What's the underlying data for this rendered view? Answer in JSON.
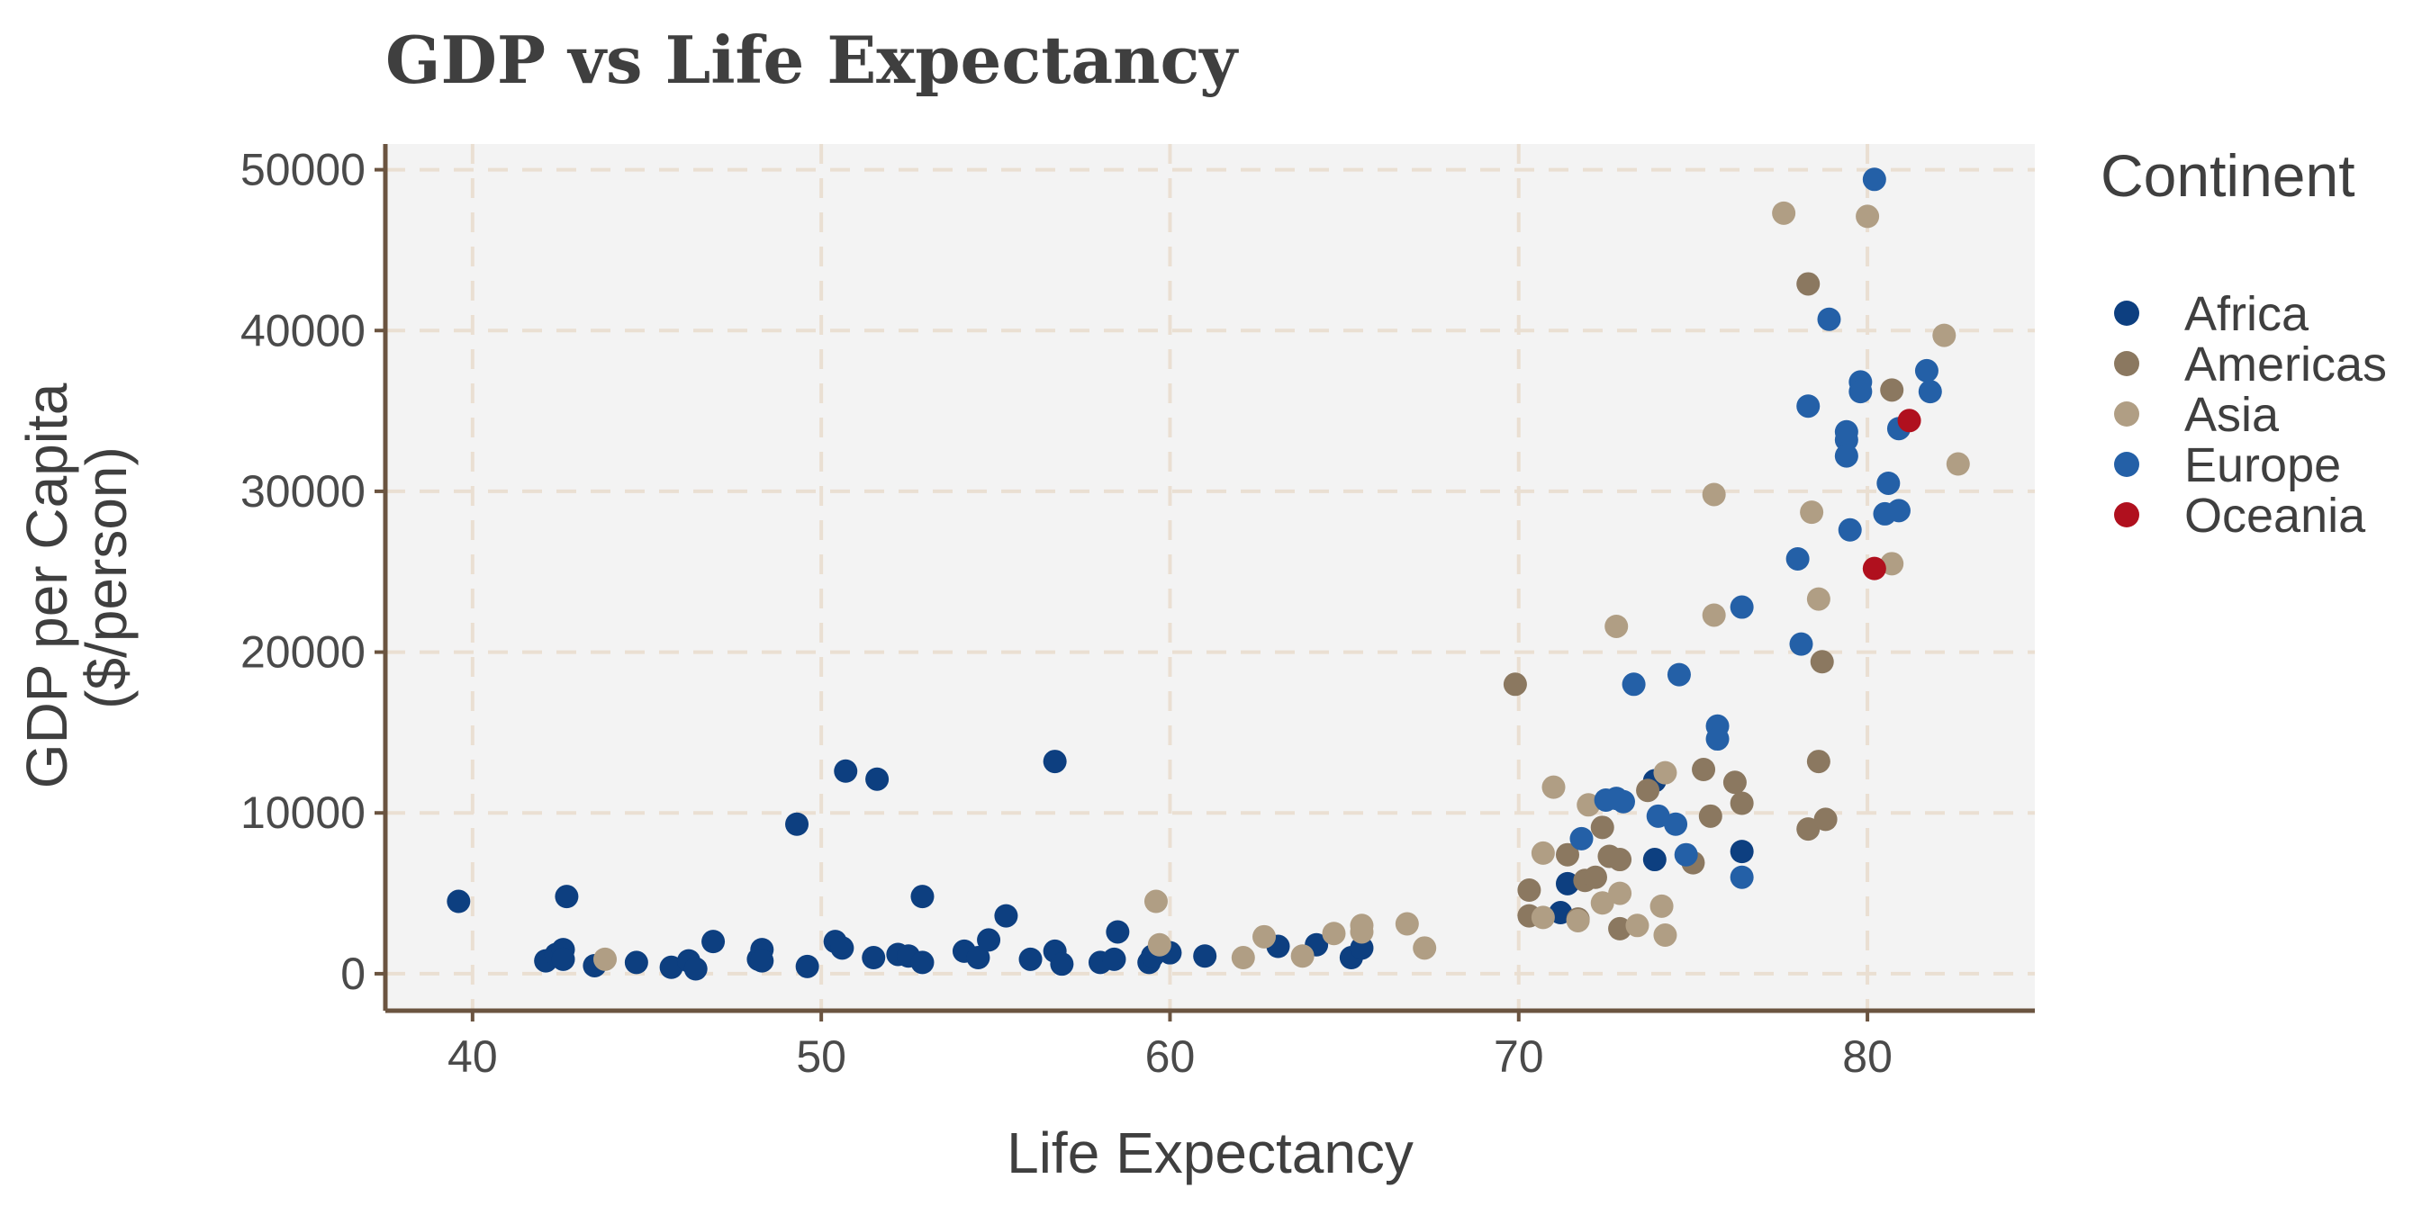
{
  "chart_data": {
    "type": "scatter",
    "title": "GDP vs Life Expectancy",
    "xlabel": "Life Expectancy",
    "ylabel": [
      "GDP per Capita",
      "($/person)"
    ],
    "xlim": [
      37.5,
      84.8
    ],
    "ylim": [
      -2300,
      51600
    ],
    "xticks": [
      40,
      50,
      60,
      70,
      80
    ],
    "yticks": [
      0,
      10000,
      20000,
      30000,
      40000,
      50000
    ],
    "grid": true,
    "legend": {
      "title": "Continent",
      "position": "right"
    },
    "colors": {
      "panel": "#f3f3f3",
      "grid": "#eadfd2",
      "axis": "#6b5440",
      "Africa": "#0d3f80",
      "Americas": "#8b7860",
      "Asia": "#b09e84",
      "Europe": "#2460a7",
      "Oceania": "#b0101e"
    },
    "series": [
      {
        "name": "Africa",
        "points": [
          [
            39.6,
            4500
          ],
          [
            42.1,
            800
          ],
          [
            42.4,
            1200
          ],
          [
            42.6,
            1500
          ],
          [
            42.6,
            900
          ],
          [
            42.7,
            4800
          ],
          [
            43.5,
            500
          ],
          [
            44.7,
            700
          ],
          [
            45.7,
            400
          ],
          [
            46.2,
            800
          ],
          [
            46.4,
            300
          ],
          [
            46.9,
            2000
          ],
          [
            48.2,
            900
          ],
          [
            48.3,
            1500
          ],
          [
            48.3,
            800
          ],
          [
            49.3,
            9300
          ],
          [
            49.6,
            450
          ],
          [
            50.4,
            2000
          ],
          [
            50.6,
            1600
          ],
          [
            50.7,
            12600
          ],
          [
            51.5,
            1000
          ],
          [
            51.6,
            12100
          ],
          [
            52.2,
            1200
          ],
          [
            52.5,
            1100
          ],
          [
            52.9,
            4800
          ],
          [
            52.9,
            700
          ],
          [
            54.1,
            1400
          ],
          [
            54.5,
            1000
          ],
          [
            54.8,
            2100
          ],
          [
            55.3,
            3600
          ],
          [
            56.0,
            900
          ],
          [
            56.7,
            1400
          ],
          [
            56.7,
            13200
          ],
          [
            56.9,
            600
          ],
          [
            58.0,
            700
          ],
          [
            58.4,
            900
          ],
          [
            58.5,
            2600
          ],
          [
            59.4,
            700
          ],
          [
            59.5,
            1100
          ],
          [
            60.0,
            1300
          ],
          [
            61.0,
            1100
          ],
          [
            63.1,
            1700
          ],
          [
            64.2,
            1800
          ],
          [
            65.2,
            1000
          ],
          [
            65.5,
            1600
          ],
          [
            71.4,
            5600
          ],
          [
            71.2,
            3800
          ],
          [
            73.9,
            7100
          ],
          [
            76.4,
            7600
          ],
          [
            73.9,
            12000
          ]
        ]
      },
      {
        "name": "Americas",
        "points": [
          [
            69.9,
            18000
          ],
          [
            70.3,
            3600
          ],
          [
            70.3,
            5200
          ],
          [
            71.4,
            7400
          ],
          [
            71.9,
            5800
          ],
          [
            72.2,
            6000
          ],
          [
            72.4,
            9100
          ],
          [
            72.6,
            7300
          ],
          [
            72.9,
            2800
          ],
          [
            72.9,
            7100
          ],
          [
            73.7,
            11400
          ],
          [
            75.0,
            6900
          ],
          [
            75.3,
            12700
          ],
          [
            75.5,
            9800
          ],
          [
            76.2,
            11900
          ],
          [
            76.4,
            10600
          ],
          [
            78.3,
            42900
          ],
          [
            78.3,
            9000
          ],
          [
            78.7,
            19400
          ],
          [
            78.6,
            13200
          ],
          [
            78.8,
            9600
          ],
          [
            80.7,
            36300
          ],
          [
            71.7,
            3400
          ]
        ]
      },
      {
        "name": "Asia",
        "points": [
          [
            43.8,
            900
          ],
          [
            59.6,
            4500
          ],
          [
            59.7,
            1800
          ],
          [
            62.1,
            1000
          ],
          [
            62.7,
            2300
          ],
          [
            63.8,
            1100
          ],
          [
            64.7,
            2500
          ],
          [
            65.5,
            2600
          ],
          [
            65.5,
            3000
          ],
          [
            66.8,
            3100
          ],
          [
            67.3,
            1600
          ],
          [
            70.7,
            7500
          ],
          [
            70.7,
            3500
          ],
          [
            71.0,
            11600
          ],
          [
            71.7,
            3300
          ],
          [
            72.0,
            10500
          ],
          [
            72.4,
            4400
          ],
          [
            72.8,
            21600
          ],
          [
            72.9,
            5000
          ],
          [
            73.4,
            3000
          ],
          [
            74.1,
            4200
          ],
          [
            74.2,
            2400
          ],
          [
            74.2,
            12500
          ],
          [
            75.6,
            22300
          ],
          [
            75.6,
            29800
          ],
          [
            77.6,
            47300
          ],
          [
            78.4,
            28700
          ],
          [
            78.6,
            23300
          ],
          [
            80.0,
            47100
          ],
          [
            80.7,
            25500
          ],
          [
            82.2,
            39700
          ],
          [
            82.6,
            31700
          ]
        ]
      },
      {
        "name": "Europe",
        "points": [
          [
            71.8,
            8400
          ],
          [
            72.5,
            10800
          ],
          [
            72.8,
            10900
          ],
          [
            73.0,
            10700
          ],
          [
            73.3,
            18000
          ],
          [
            74.0,
            9800
          ],
          [
            74.5,
            9300
          ],
          [
            74.6,
            18600
          ],
          [
            74.8,
            7400
          ],
          [
            75.7,
            15400
          ],
          [
            75.7,
            14600
          ],
          [
            76.4,
            22800
          ],
          [
            76.4,
            6000
          ],
          [
            78.0,
            25800
          ],
          [
            78.1,
            20500
          ],
          [
            78.3,
            35300
          ],
          [
            78.9,
            40700
          ],
          [
            79.4,
            33200
          ],
          [
            79.4,
            33700
          ],
          [
            79.4,
            32200
          ],
          [
            79.5,
            27600
          ],
          [
            79.8,
            36800
          ],
          [
            79.8,
            36200
          ],
          [
            80.2,
            49400
          ],
          [
            80.5,
            28600
          ],
          [
            80.6,
            30500
          ],
          [
            80.9,
            33900
          ],
          [
            80.9,
            28800
          ],
          [
            81.7,
            37500
          ],
          [
            81.8,
            36200
          ]
        ]
      },
      {
        "name": "Oceania",
        "points": [
          [
            80.2,
            25200
          ],
          [
            81.2,
            34400
          ]
        ]
      }
    ]
  }
}
